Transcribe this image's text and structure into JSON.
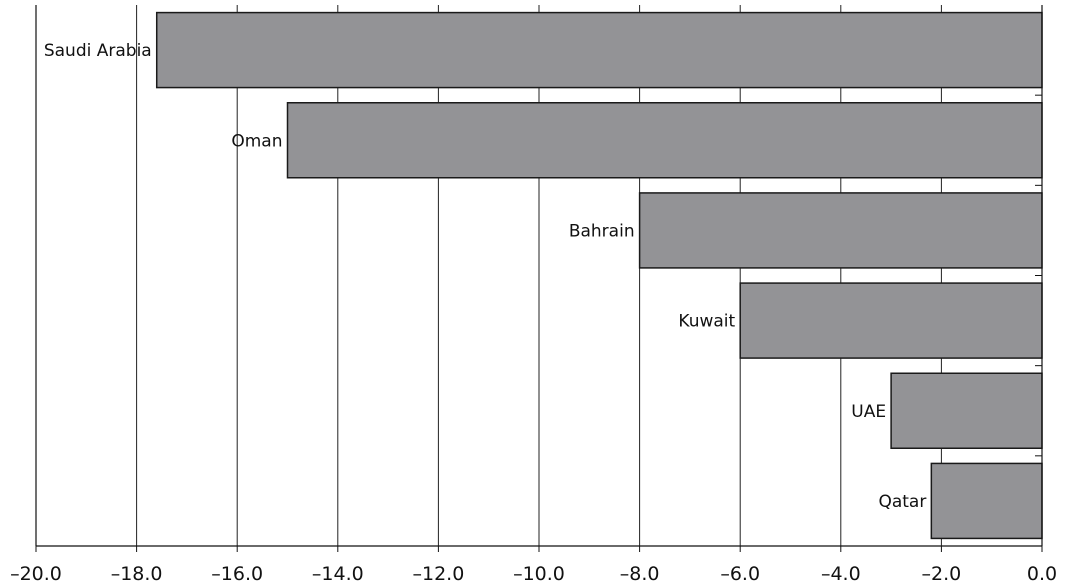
{
  "chart_data": {
    "type": "bar",
    "orientation": "horizontal",
    "title": "",
    "xlabel": "",
    "ylabel": "",
    "categories": [
      "Saudi Arabia",
      "Oman",
      "Bahrain",
      "Kuwait",
      "UAE",
      "Qatar"
    ],
    "values": [
      -17.6,
      -15.0,
      -8.0,
      -6.0,
      -3.0,
      -2.2
    ],
    "xlim": [
      -20.0,
      0.0
    ],
    "xticks": [
      -20.0,
      -18.0,
      -16.0,
      -14.0,
      -12.0,
      -10.0,
      -8.0,
      -6.0,
      -4.0,
      -2.0,
      0.0
    ],
    "xtick_labels": [
      "–20.0",
      "–18.0",
      "–16.0",
      "–14.0",
      "–12.0",
      "–10.0",
      "–8.0",
      "–6.0",
      "–4.0",
      "–2.0",
      "0.0"
    ],
    "grid": "vertical",
    "legend": "none",
    "colors": {
      "bar_fill": "#939396",
      "bar_stroke": "#1a1a1a",
      "grid": "#222222",
      "axis": "#111111"
    }
  }
}
